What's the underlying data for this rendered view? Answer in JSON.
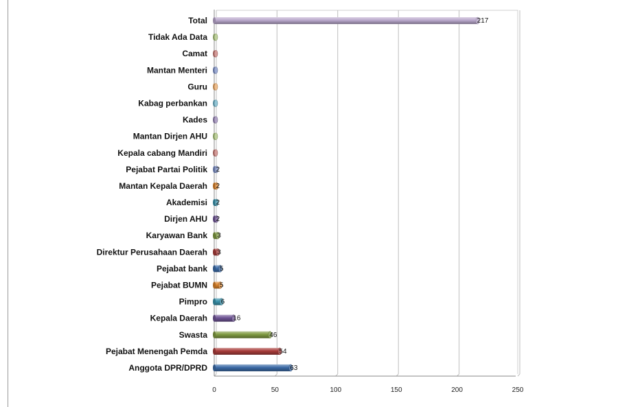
{
  "chart_data": {
    "type": "bar",
    "orientation": "horizontal",
    "style": "3d-cylinder",
    "title": "",
    "xlabel": "",
    "ylabel": "",
    "xlim": [
      0,
      250
    ],
    "xticks": [
      0,
      50,
      100,
      150,
      200,
      250
    ],
    "grid": "vertical",
    "legend": "none",
    "categories": [
      "Anggota DPR/DPRD",
      "Pejabat Menengah Pemda",
      "Swasta",
      "Kepala Daerah",
      "Pimpro",
      "Pejabat BUMN",
      "Pejabat bank",
      "Direktur Perusahaan Daerah",
      "Karyawan Bank",
      "Dirjen AHU",
      "Akademisi",
      "Mantan Kepala Daerah",
      "Pejabat Partai Politik",
      "Kepala cabang Mandiri",
      "Mantan Dirjen AHU",
      "Kades",
      "Kabag perbankan",
      "Guru",
      "Mantan Menteri",
      "Camat",
      "Tidak Ada Data",
      "Total"
    ],
    "values": [
      63,
      54,
      46,
      16,
      6,
      5,
      5,
      3,
      3,
      2,
      2,
      2,
      2,
      1,
      1,
      1,
      1,
      1,
      1,
      1,
      1,
      217
    ],
    "data_labels": [
      "63",
      "54",
      "46",
      "16",
      "6",
      "5",
      "5",
      "3",
      "3",
      "2",
      "2",
      "2",
      "2",
      "",
      "",
      "",
      "",
      "",
      "",
      "",
      "",
      "217"
    ],
    "colors": [
      "#3b6aa6",
      "#a83c3a",
      "#7f9a41",
      "#6d5393",
      "#3a92ab",
      "#d9822b",
      "#3b6aa6",
      "#a83c3a",
      "#7f9a41",
      "#6d5393",
      "#3a92ab",
      "#d9822b",
      "#7c8fc6",
      "#c77a76",
      "#a8c27a",
      "#9583b3",
      "#6fb3c8",
      "#e8a765",
      "#7c8fc6",
      "#c77a76",
      "#a8c27a",
      "#b9a8cc"
    ]
  }
}
